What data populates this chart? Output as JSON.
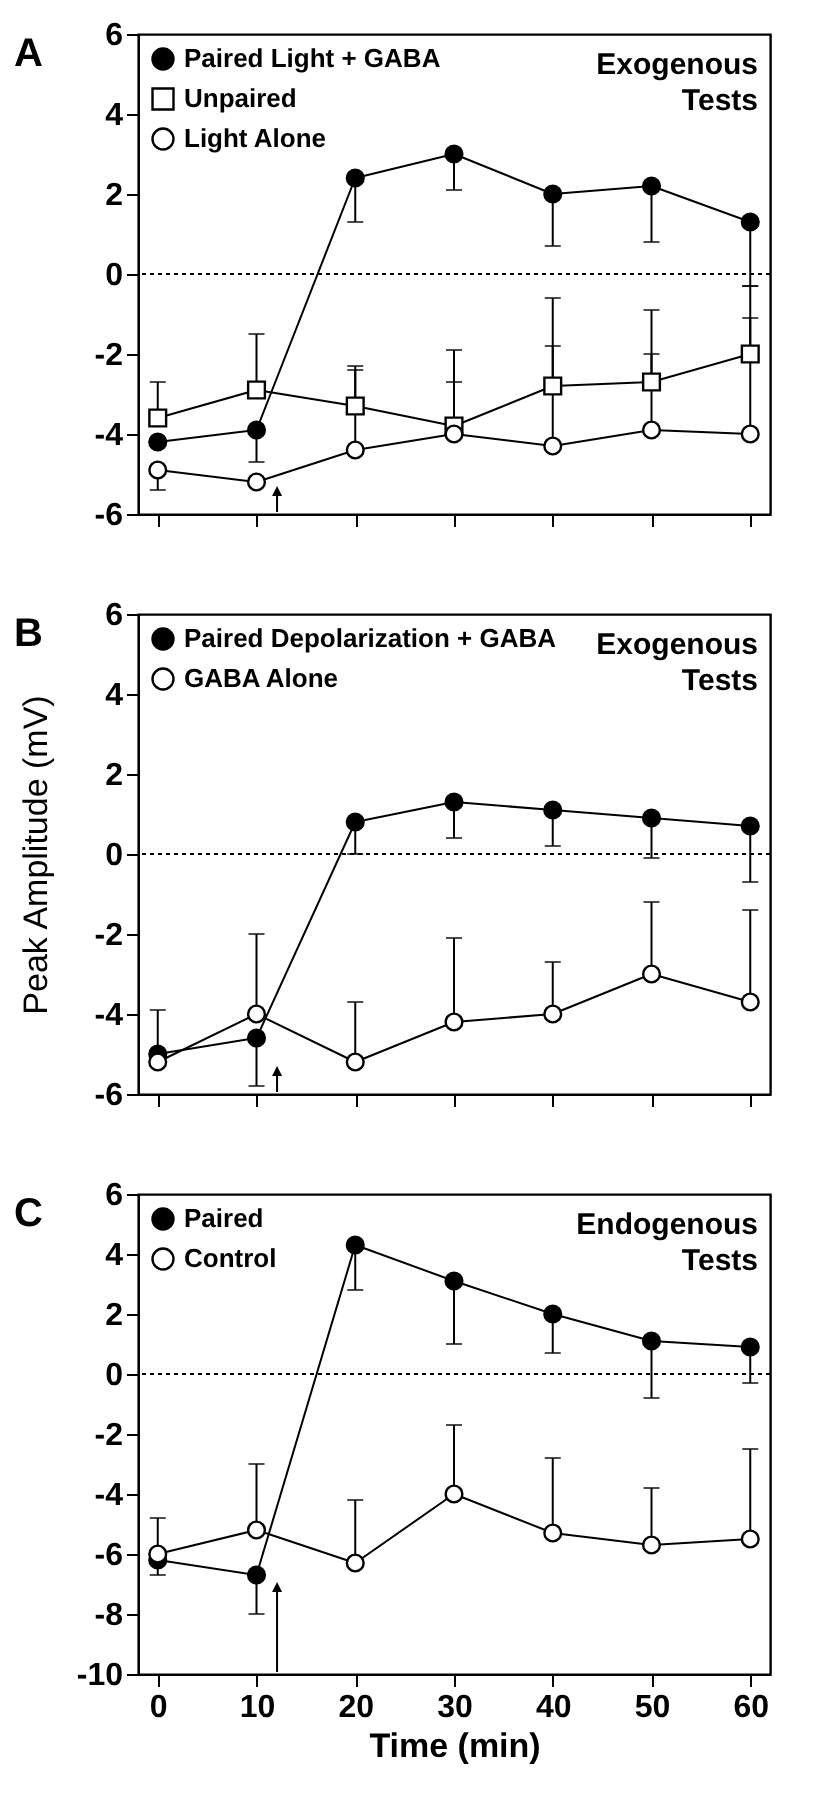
{
  "chart_data": [
    {
      "type": "line",
      "title": "A",
      "x": [
        0,
        10,
        20,
        30,
        40,
        50,
        60
      ],
      "xlim": [
        -2,
        62
      ],
      "xticks": [
        0,
        10,
        20,
        30,
        40,
        50,
        60
      ],
      "ylim": [
        -6,
        6
      ],
      "yticks": [
        -6,
        -4,
        -2,
        0,
        2,
        4,
        6
      ],
      "tick_labels": "y",
      "grid": false,
      "legend": "top left",
      "annotations": [
        "Exogenous Tests"
      ],
      "ref_lines": [
        {
          "axis": "y",
          "value": 0,
          "line_style": "dotted"
        }
      ],
      "series": [
        {
          "name": "Paired Light + GABA",
          "color": "#000000",
          "marker": "circle",
          "values": [
            -4.2,
            -3.9,
            2.4,
            3.0,
            2.0,
            2.2,
            1.3
          ],
          "errors": [
            null,
            [
              -4.7,
              -3.9
            ],
            [
              1.3,
              2.4
            ],
            [
              2.1,
              3.0
            ],
            [
              0.7,
              2.0
            ],
            [
              0.8,
              2.2
            ],
            [
              -0.3,
              1.3
            ]
          ]
        },
        {
          "name": "Unpaired",
          "color": "#000000",
          "marker": "square",
          "values": [
            -3.6,
            -2.9,
            -3.3,
            -3.8,
            -2.8,
            -2.7,
            -2.0
          ],
          "errors": [
            [
              -3.6,
              -2.7
            ],
            [
              -2.9,
              -1.5
            ],
            [
              -3.3,
              -2.3
            ],
            [
              -3.8,
              -1.9
            ],
            [
              -2.8,
              -0.6
            ],
            [
              -2.7,
              -0.9
            ],
            [
              -2.0,
              -1.1
            ]
          ]
        },
        {
          "name": "Light Alone",
          "color": "#000000",
          "marker": "circle",
          "values": [
            -4.9,
            -5.2,
            -4.4,
            -4.0,
            -4.3,
            -3.9,
            -4.0
          ],
          "errors": [
            [
              -5.4,
              -4.9
            ],
            null,
            [
              -4.4,
              -2.4
            ],
            [
              -4.0,
              -2.7
            ],
            [
              -4.3,
              -1.8
            ],
            [
              -3.9,
              -2.0
            ],
            [
              -4.0,
              -0.3
            ]
          ]
        }
      ]
    },
    {
      "type": "line",
      "title": "B",
      "ylabel": "Peak Amplitude (mV)",
      "x": [
        0,
        10,
        20,
        30,
        40,
        50,
        60
      ],
      "xlim": [
        -2,
        62
      ],
      "xticks": [
        0,
        10,
        20,
        30,
        40,
        50,
        60
      ],
      "ylim": [
        -6,
        6
      ],
      "yticks": [
        -6,
        -4,
        -2,
        0,
        2,
        4,
        6
      ],
      "tick_labels": "y",
      "grid": false,
      "legend": "top left",
      "annotations": [
        "Exogenous Tests"
      ],
      "ref_lines": [
        {
          "axis": "y",
          "value": 0,
          "line_style": "dotted"
        }
      ],
      "series": [
        {
          "name": "Paired Depolarization + GABA",
          "color": "#000000",
          "marker": "circle",
          "values": [
            -5.0,
            -4.6,
            0.8,
            1.3,
            1.1,
            0.9,
            0.7
          ],
          "errors": [
            [
              -5.3,
              -5.0
            ],
            [
              -5.8,
              -4.6
            ],
            [
              0.0,
              0.8
            ],
            [
              0.4,
              1.3
            ],
            [
              0.2,
              1.1
            ],
            [
              -0.1,
              0.9
            ],
            [
              -0.7,
              0.7
            ]
          ]
        },
        {
          "name": "GABA Alone",
          "color": "#000000",
          "marker": "circle",
          "values": [
            -5.2,
            -4.0,
            -5.2,
            -4.2,
            -4.0,
            -3.0,
            -3.7
          ],
          "errors": [
            [
              -5.2,
              -3.9
            ],
            [
              -4.0,
              -2.0
            ],
            [
              -5.2,
              -3.7
            ],
            [
              -4.2,
              -2.1
            ],
            [
              -4.0,
              -2.7
            ],
            [
              -3.0,
              -1.2
            ],
            [
              -3.7,
              -1.4
            ]
          ]
        }
      ]
    },
    {
      "type": "line",
      "title": "C",
      "xlabel": "Time (min)",
      "x": [
        0,
        10,
        20,
        30,
        40,
        50,
        60
      ],
      "xlim": [
        -2,
        62
      ],
      "xticks": [
        0,
        10,
        20,
        30,
        40,
        50,
        60
      ],
      "ylim": [
        -10,
        6
      ],
      "yticks": [
        -10,
        -8,
        -6,
        -4,
        -2,
        0,
        2,
        4,
        6
      ],
      "grid": false,
      "legend": "top left",
      "annotations": [
        "Endogenous Tests"
      ],
      "ref_lines": [
        {
          "axis": "y",
          "value": 0,
          "line_style": "dotted"
        }
      ],
      "series": [
        {
          "name": "Paired",
          "color": "#000000",
          "marker": "circle",
          "values": [
            -6.2,
            -6.7,
            4.3,
            3.1,
            2.0,
            1.1,
            0.9
          ],
          "errors": [
            [
              -6.7,
              -6.2
            ],
            [
              -8.0,
              -6.7
            ],
            [
              2.8,
              4.3
            ],
            [
              1.0,
              3.1
            ],
            [
              0.7,
              2.0
            ],
            [
              -0.8,
              1.1
            ],
            [
              -0.3,
              0.9
            ]
          ]
        },
        {
          "name": "Control",
          "color": "#000000",
          "marker": "circle",
          "values": [
            -6.0,
            -5.2,
            -6.3,
            -4.0,
            -5.3,
            -5.7,
            -5.5
          ],
          "errors": [
            [
              -6.0,
              -4.8
            ],
            [
              -5.2,
              -3.0
            ],
            [
              -6.3,
              -4.2
            ],
            [
              -4.0,
              -1.7
            ],
            [
              -5.3,
              -2.8
            ],
            [
              -5.7,
              -3.8
            ],
            [
              -5.5,
              -2.5
            ]
          ]
        }
      ]
    }
  ]
}
